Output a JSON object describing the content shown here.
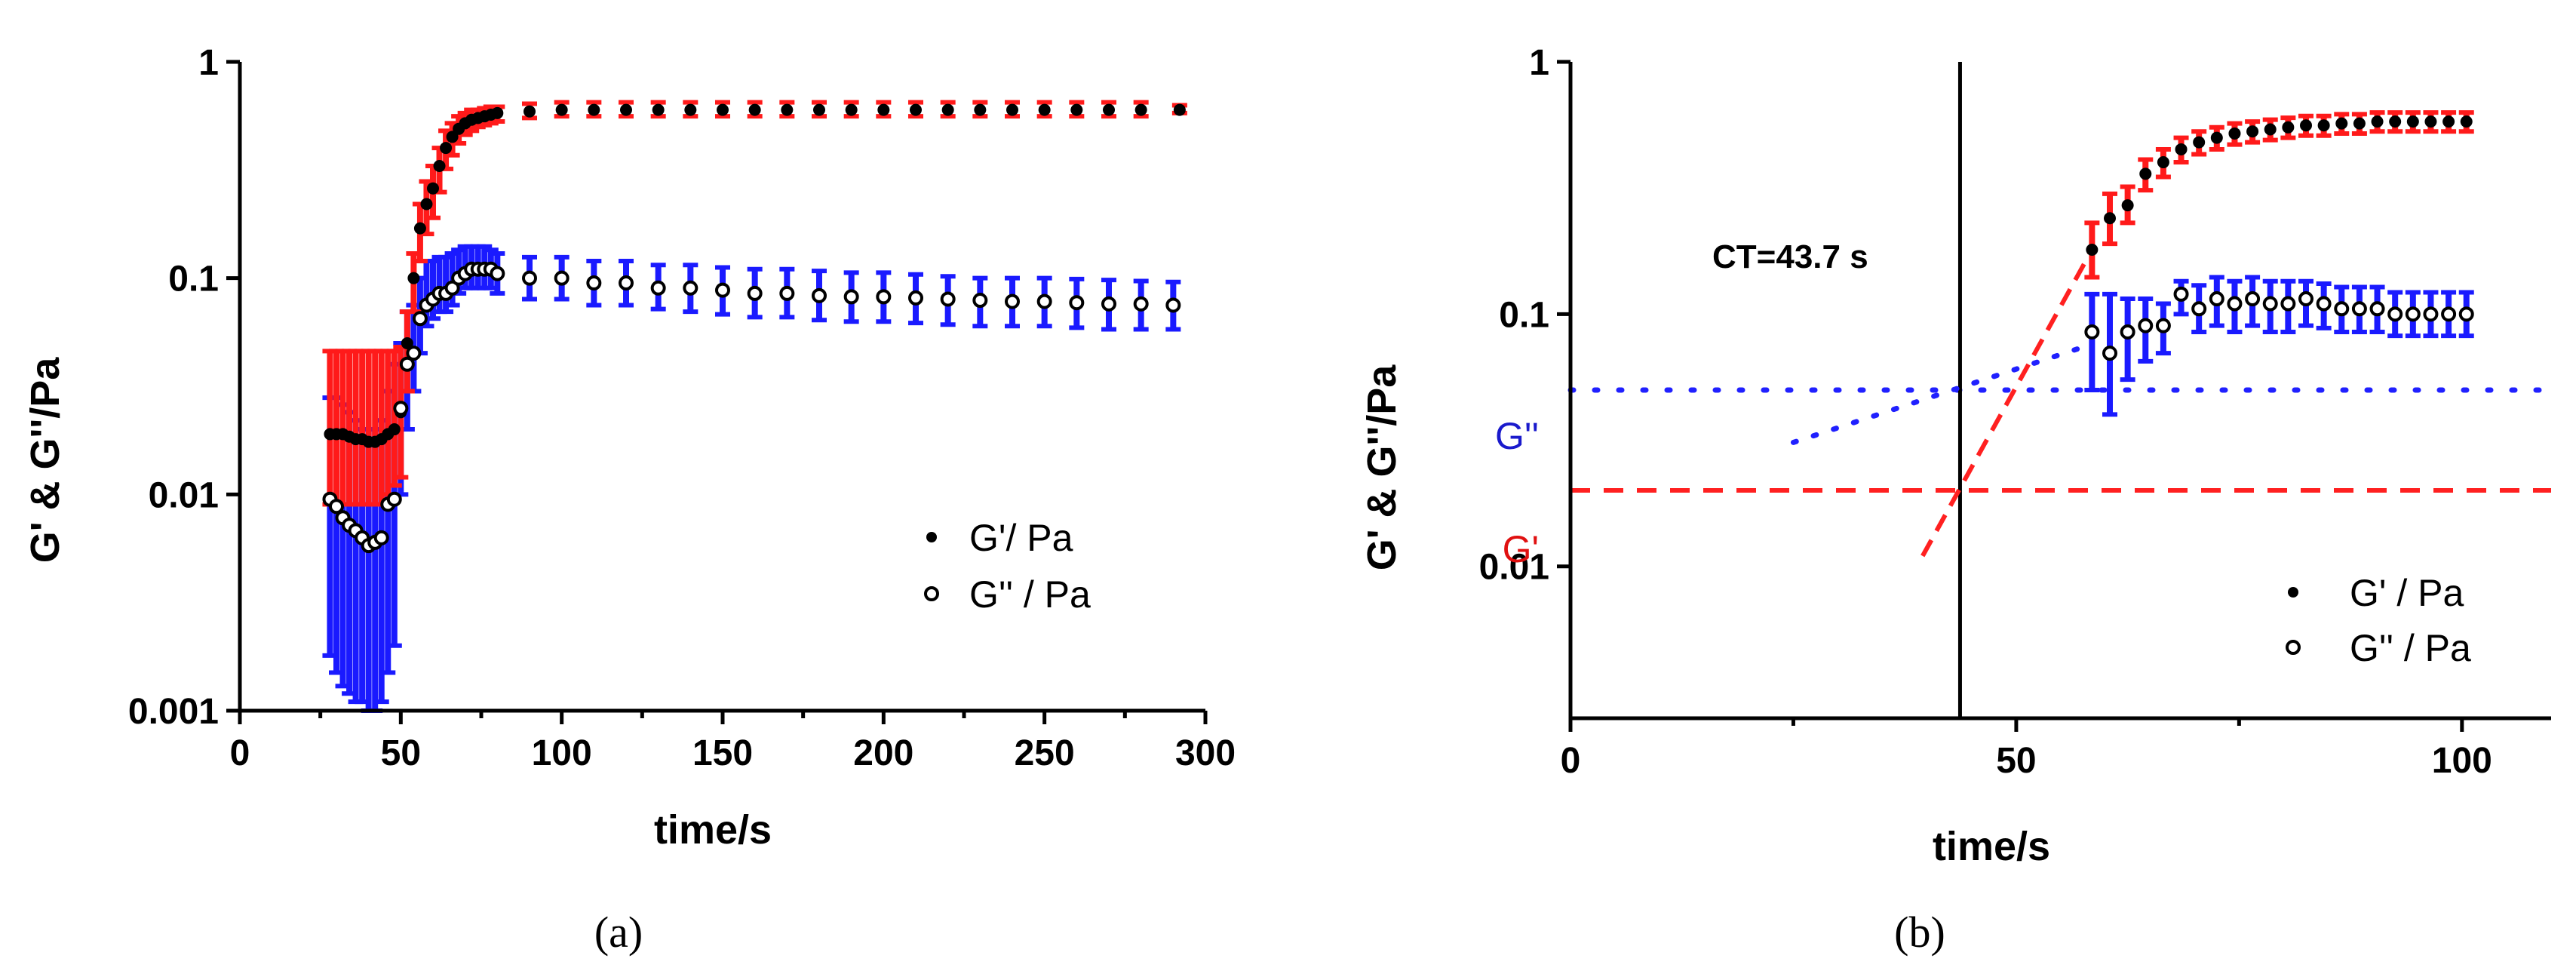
{
  "chart_data": [
    {
      "panel": "a",
      "panel_label": "(a)",
      "type": "scatter",
      "xscale": "linear",
      "yscale": "log",
      "xlim": [
        0,
        300
      ],
      "ylim": [
        0.001,
        1
      ],
      "xticks": [
        0,
        50,
        100,
        150,
        200,
        250,
        300
      ],
      "yticks": [
        0.001,
        0.01,
        0.1,
        1
      ],
      "xtick_labels": [
        "0",
        "50",
        "100",
        "150",
        "200",
        "250",
        "300"
      ],
      "ytick_labels": [
        "0.001",
        "0.01",
        "0.1",
        "1"
      ],
      "xlabel": "time/s",
      "ylabel": "G' & G''/Pa",
      "legend_position": "right-center",
      "colors": {
        "G_prime_error": "#ff1a1a",
        "G_double_prime_error": "#1a1aff",
        "marker": "#000000"
      },
      "series": [
        {
          "name": "G'/ Pa",
          "marker": "filled",
          "error_color": "red",
          "x": [
            28,
            30,
            32,
            34,
            36,
            38,
            40,
            42,
            44,
            46,
            48,
            50,
            52,
            54,
            56,
            58,
            60,
            62,
            64,
            66,
            68,
            70,
            72,
            74,
            76,
            78,
            80,
            90,
            100,
            110,
            120,
            130,
            140,
            150,
            160,
            170,
            180,
            190,
            200,
            210,
            220,
            230,
            240,
            250,
            260,
            270,
            280,
            292
          ],
          "y": [
            0.019,
            0.019,
            0.019,
            0.0185,
            0.018,
            0.018,
            0.0175,
            0.0175,
            0.018,
            0.019,
            0.02,
            0.024,
            0.05,
            0.1,
            0.17,
            0.22,
            0.26,
            0.33,
            0.4,
            0.45,
            0.49,
            0.52,
            0.54,
            0.55,
            0.56,
            0.57,
            0.58,
            0.59,
            0.6,
            0.6,
            0.6,
            0.6,
            0.6,
            0.6,
            0.6,
            0.6,
            0.6,
            0.6,
            0.6,
            0.6,
            0.6,
            0.6,
            0.6,
            0.6,
            0.6,
            0.6,
            0.6,
            0.6
          ],
          "err_low": [
            0.009,
            0.009,
            0.009,
            0.009,
            0.009,
            0.009,
            0.009,
            0.009,
            0.009,
            0.01,
            0.011,
            0.012,
            0.03,
            0.07,
            0.12,
            0.16,
            0.19,
            0.25,
            0.32,
            0.37,
            0.42,
            0.46,
            0.48,
            0.5,
            0.51,
            0.52,
            0.53,
            0.55,
            0.56,
            0.56,
            0.56,
            0.56,
            0.56,
            0.56,
            0.56,
            0.56,
            0.56,
            0.56,
            0.56,
            0.56,
            0.56,
            0.56,
            0.56,
            0.56,
            0.56,
            0.56,
            0.56,
            0.58
          ],
          "err_high": [
            0.046,
            0.046,
            0.046,
            0.046,
            0.046,
            0.046,
            0.046,
            0.046,
            0.046,
            0.046,
            0.046,
            0.048,
            0.07,
            0.13,
            0.22,
            0.28,
            0.33,
            0.4,
            0.48,
            0.52,
            0.56,
            0.58,
            0.6,
            0.6,
            0.61,
            0.62,
            0.62,
            0.64,
            0.65,
            0.65,
            0.65,
            0.65,
            0.65,
            0.65,
            0.65,
            0.65,
            0.65,
            0.65,
            0.65,
            0.65,
            0.65,
            0.65,
            0.65,
            0.65,
            0.65,
            0.65,
            0.65,
            0.63
          ]
        },
        {
          "name": "G'' / Pa",
          "marker": "open",
          "error_color": "blue",
          "x": [
            28,
            30,
            32,
            34,
            36,
            38,
            40,
            42,
            44,
            46,
            48,
            50,
            52,
            54,
            56,
            58,
            60,
            62,
            64,
            66,
            68,
            70,
            72,
            74,
            76,
            78,
            80,
            90,
            100,
            110,
            120,
            130,
            140,
            150,
            160,
            170,
            180,
            190,
            200,
            210,
            220,
            230,
            240,
            250,
            260,
            270,
            280,
            290
          ],
          "y": [
            0.0095,
            0.0088,
            0.0078,
            0.0072,
            0.0068,
            0.0063,
            0.0058,
            0.006,
            0.0063,
            0.009,
            0.0095,
            0.025,
            0.04,
            0.045,
            0.065,
            0.075,
            0.08,
            0.085,
            0.085,
            0.09,
            0.1,
            0.105,
            0.11,
            0.11,
            0.11,
            0.11,
            0.105,
            0.1,
            0.1,
            0.095,
            0.095,
            0.09,
            0.09,
            0.088,
            0.085,
            0.085,
            0.083,
            0.082,
            0.082,
            0.081,
            0.08,
            0.079,
            0.078,
            0.078,
            0.077,
            0.076,
            0.076,
            0.075
          ],
          "err_low": [
            0.0018,
            0.0015,
            0.0013,
            0.0012,
            0.0011,
            0.0011,
            0.001,
            0.001,
            0.0011,
            0.0015,
            0.002,
            0.01,
            0.02,
            0.03,
            0.045,
            0.06,
            0.065,
            0.07,
            0.07,
            0.075,
            0.085,
            0.09,
            0.09,
            0.09,
            0.09,
            0.09,
            0.085,
            0.08,
            0.08,
            0.075,
            0.075,
            0.072,
            0.07,
            0.068,
            0.066,
            0.066,
            0.064,
            0.063,
            0.063,
            0.062,
            0.061,
            0.06,
            0.06,
            0.06,
            0.059,
            0.058,
            0.058,
            0.058
          ],
          "err_high": [
            0.028,
            0.028,
            0.026,
            0.024,
            0.022,
            0.02,
            0.02,
            0.02,
            0.022,
            0.03,
            0.04,
            0.05,
            0.07,
            0.075,
            0.1,
            0.12,
            0.12,
            0.125,
            0.125,
            0.13,
            0.135,
            0.14,
            0.14,
            0.14,
            0.14,
            0.135,
            0.13,
            0.125,
            0.125,
            0.12,
            0.12,
            0.115,
            0.115,
            0.112,
            0.11,
            0.11,
            0.108,
            0.106,
            0.106,
            0.104,
            0.102,
            0.1,
            0.1,
            0.1,
            0.099,
            0.098,
            0.097,
            0.096
          ]
        }
      ]
    },
    {
      "panel": "b",
      "panel_label": "(b)",
      "type": "scatter",
      "xscale": "linear",
      "yscale": "log",
      "xlim": [
        0,
        110
      ],
      "ylim": [
        0.0025,
        1
      ],
      "xticks": [
        0,
        50,
        100
      ],
      "yticks": [
        0.01,
        0.1,
        1
      ],
      "xtick_labels": [
        "0",
        "50",
        "100"
      ],
      "ytick_labels": [
        "0.01",
        "0.1",
        "1"
      ],
      "xlabel": "time/s",
      "ylabel": "G' & G''/Pa",
      "legend_position": "bottom-right",
      "annotation": "CT=43.7 s",
      "crossover_time": 43.7,
      "G_prime_level": 0.02,
      "G_double_prime_level": 0.05,
      "level_labels": {
        "G_prime": "G'",
        "G_double_prime": "G''"
      },
      "colors": {
        "G_prime_error": "#ff1a1a",
        "G_double_prime_error": "#1a1aff",
        "marker": "#000000",
        "G_prime_line": "#ff2020",
        "G_double_prime_line": "#2020ff"
      },
      "series": [
        {
          "name": "G'  / Pa",
          "marker": "filled",
          "error_color": "red",
          "x": [
            58.5,
            60.5,
            62.5,
            64.5,
            66.5,
            68.5,
            70.5,
            72.5,
            74.5,
            76.5,
            78.5,
            80.5,
            82.5,
            84.5,
            86.5,
            88.5,
            90.5,
            92.5,
            94.5,
            96.5,
            98.5,
            100.5
          ],
          "y": [
            0.18,
            0.24,
            0.27,
            0.36,
            0.4,
            0.45,
            0.48,
            0.5,
            0.52,
            0.53,
            0.54,
            0.55,
            0.56,
            0.56,
            0.57,
            0.57,
            0.58,
            0.58,
            0.58,
            0.58,
            0.58,
            0.58
          ],
          "err_low": [
            0.14,
            0.19,
            0.23,
            0.31,
            0.35,
            0.4,
            0.43,
            0.45,
            0.47,
            0.48,
            0.49,
            0.5,
            0.51,
            0.51,
            0.52,
            0.52,
            0.53,
            0.53,
            0.53,
            0.53,
            0.53,
            0.53
          ],
          "err_high": [
            0.23,
            0.3,
            0.32,
            0.41,
            0.45,
            0.5,
            0.53,
            0.55,
            0.57,
            0.58,
            0.59,
            0.6,
            0.61,
            0.61,
            0.62,
            0.62,
            0.63,
            0.63,
            0.63,
            0.63,
            0.63,
            0.63
          ]
        },
        {
          "name": "G''  / Pa",
          "marker": "open",
          "error_color": "blue",
          "x": [
            58.5,
            60.5,
            62.5,
            64.5,
            66.5,
            68.5,
            70.5,
            72.5,
            74.5,
            76.5,
            78.5,
            80.5,
            82.5,
            84.5,
            86.5,
            88.5,
            90.5,
            92.5,
            94.5,
            96.5,
            98.5,
            100.5
          ],
          "y": [
            0.085,
            0.07,
            0.085,
            0.09,
            0.09,
            0.12,
            0.105,
            0.115,
            0.11,
            0.115,
            0.11,
            0.11,
            0.115,
            0.11,
            0.105,
            0.105,
            0.105,
            0.1,
            0.1,
            0.1,
            0.1,
            0.1
          ],
          "err_low": [
            0.05,
            0.04,
            0.055,
            0.065,
            0.07,
            0.1,
            0.085,
            0.09,
            0.085,
            0.09,
            0.085,
            0.085,
            0.09,
            0.088,
            0.085,
            0.085,
            0.085,
            0.082,
            0.082,
            0.082,
            0.082,
            0.082
          ],
          "err_high": [
            0.12,
            0.12,
            0.115,
            0.115,
            0.11,
            0.135,
            0.13,
            0.14,
            0.135,
            0.14,
            0.135,
            0.135,
            0.135,
            0.132,
            0.128,
            0.128,
            0.128,
            0.122,
            0.122,
            0.122,
            0.122,
            0.122
          ]
        },
        {
          "name": "G' extrapolation",
          "style": "dashed",
          "color": "red",
          "x": [
            39.5,
            58.5
          ],
          "y": [
            0.011,
            0.18
          ]
        },
        {
          "name": "G'' extrapolation",
          "style": "dotted",
          "color": "blue",
          "x": [
            25,
            58
          ],
          "y": [
            0.031,
            0.075
          ]
        }
      ]
    }
  ]
}
